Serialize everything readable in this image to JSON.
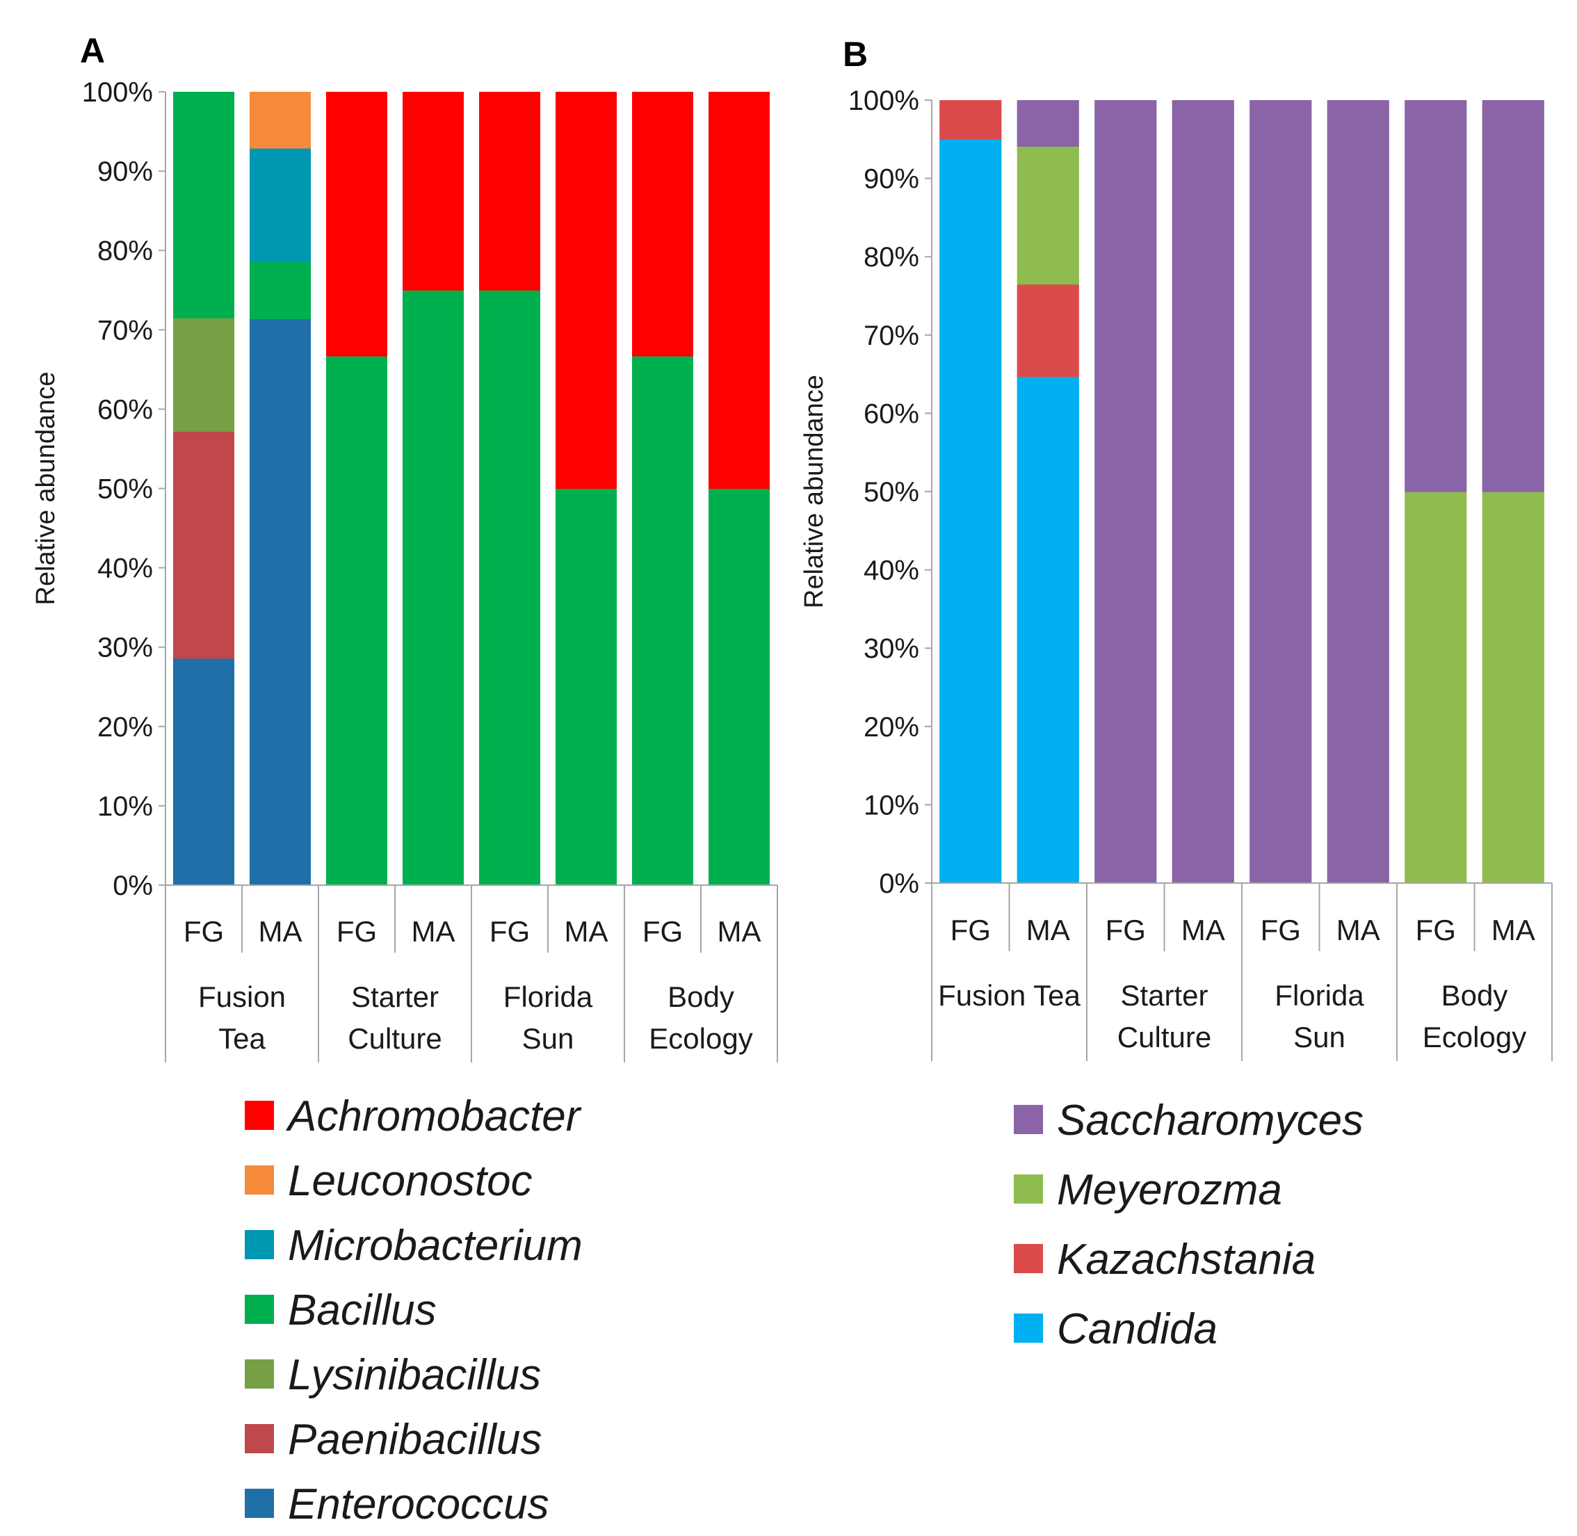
{
  "chart_data": [
    {
      "panel": "A",
      "type": "bar",
      "stacked": true,
      "ylabel": "Relative abundance",
      "ylim": [
        0,
        100
      ],
      "yticks": [
        "0%",
        "10%",
        "20%",
        "30%",
        "40%",
        "50%",
        "60%",
        "70%",
        "80%",
        "90%",
        "100%"
      ],
      "categories": [
        "FG",
        "MA",
        "FG",
        "MA",
        "FG",
        "MA",
        "FG",
        "MA"
      ],
      "groups": [
        {
          "name": "Fusion Tea",
          "lines": [
            "Fusion",
            "Tea"
          ]
        },
        {
          "name": "Starter Culture",
          "lines": [
            "Starter",
            "Culture"
          ]
        },
        {
          "name": "Florida Sun",
          "lines": [
            "Florida",
            "Sun"
          ]
        },
        {
          "name": "Body Ecology",
          "lines": [
            "Body",
            "Ecology"
          ]
        }
      ],
      "series": [
        {
          "name": "Enterococcus",
          "color": "#1f6fa8",
          "values": [
            28.6,
            71.4,
            0,
            0,
            0,
            0,
            0,
            0
          ]
        },
        {
          "name": "Paenibacillus",
          "color": "#c0474a",
          "values": [
            28.6,
            0,
            0,
            0,
            0,
            0,
            0,
            0
          ]
        },
        {
          "name": "Lysinibacillus",
          "color": "#77a044",
          "values": [
            14.3,
            0,
            0,
            0,
            0,
            0,
            0,
            0
          ]
        },
        {
          "name": "Bacillus",
          "color": "#00b04f",
          "values": [
            28.5,
            7.2,
            66.7,
            75,
            75,
            50,
            66.7,
            50
          ]
        },
        {
          "name": "Microbacterium",
          "color": "#0097b2",
          "values": [
            0,
            14.3,
            0,
            0,
            0,
            0,
            0,
            0
          ]
        },
        {
          "name": "Leuconostoc",
          "color": "#f48a3a",
          "values": [
            0,
            7.1,
            0,
            0,
            0,
            0,
            0,
            0
          ]
        },
        {
          "name": "Achromobacter",
          "color": "#ff0000",
          "values": [
            0,
            0,
            33.3,
            25,
            25,
            50,
            33.3,
            50
          ]
        }
      ],
      "legend_order": [
        "Achromobacter",
        "Leuconostoc",
        "Microbacterium",
        "Bacillus",
        "Lysinibacillus",
        "Paenibacillus",
        "Enterococcus"
      ],
      "legend": "bottom"
    },
    {
      "panel": "B",
      "type": "bar",
      "stacked": true,
      "ylabel": "Relative abundance",
      "ylim": [
        0,
        100
      ],
      "yticks": [
        "0%",
        "10%",
        "20%",
        "30%",
        "40%",
        "50%",
        "60%",
        "70%",
        "80%",
        "90%",
        "100%"
      ],
      "categories": [
        "FG",
        "MA",
        "FG",
        "MA",
        "FG",
        "MA",
        "FG",
        "MA"
      ],
      "groups": [
        {
          "name": "Fusion Tea",
          "lines": [
            "Fusion Tea"
          ]
        },
        {
          "name": "Starter Culture",
          "lines": [
            "Starter",
            "Culture"
          ]
        },
        {
          "name": "Florida Sun",
          "lines": [
            "Florida",
            "Sun"
          ]
        },
        {
          "name": "Body Ecology",
          "lines": [
            "Body",
            "Ecology"
          ]
        }
      ],
      "series": [
        {
          "name": "Candida",
          "color": "#00b0f0",
          "values": [
            95,
            64.7,
            0,
            0,
            0,
            0,
            0,
            0
          ]
        },
        {
          "name": "Kazachstania",
          "color": "#dc4b4b",
          "values": [
            5,
            11.8,
            0,
            0,
            0,
            0,
            0,
            0
          ]
        },
        {
          "name": "Meyerozma",
          "color": "#8fbc4f",
          "values": [
            0,
            17.6,
            0,
            0,
            0,
            0,
            50,
            50
          ]
        },
        {
          "name": "Saccharomyces",
          "color": "#8a64a6",
          "values": [
            0,
            5.9,
            100,
            100,
            100,
            100,
            50,
            50
          ]
        }
      ],
      "legend_order": [
        "Saccharomyces",
        "Meyerozma",
        "Kazachstania",
        "Candida"
      ],
      "legend": "bottom"
    }
  ]
}
